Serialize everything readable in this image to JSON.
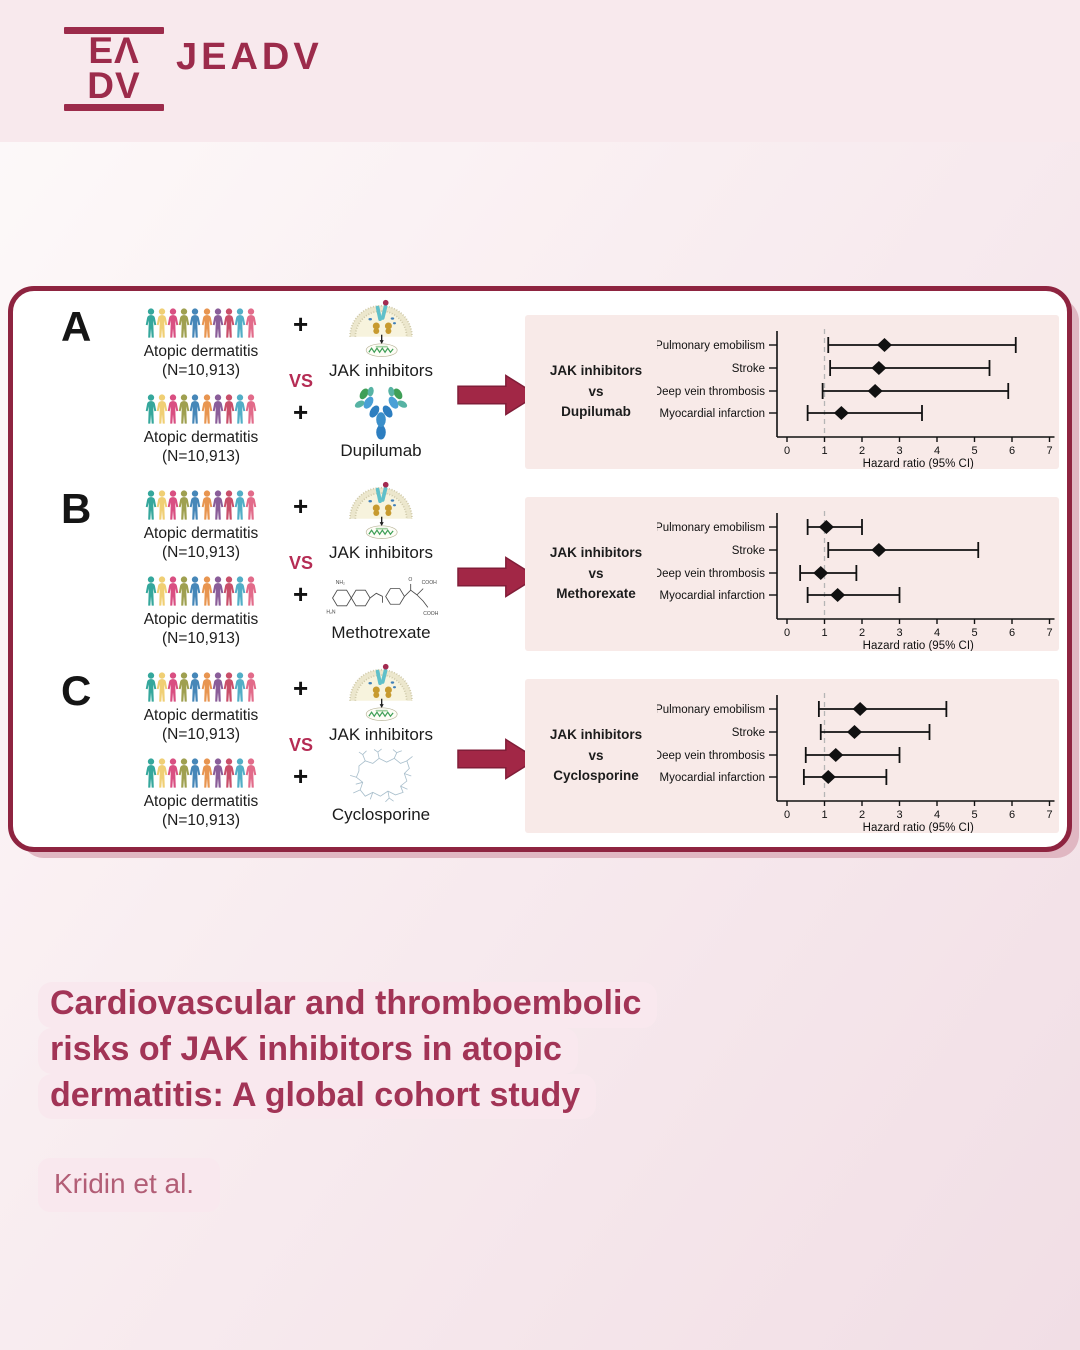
{
  "brand": {
    "logo_top": "EΛ",
    "logo_bottom": "DV",
    "journal": "JEADV"
  },
  "figure": {
    "panels": [
      {
        "letter": "A",
        "cohort_line1": "Atopic dermatitis",
        "cohort_line2": "(N=10,913)",
        "plus": "+",
        "vs": "VS",
        "drug_top_label": "JAK inhibitors",
        "drug_bottom_label": "Dupilumab",
        "comparison_lines": [
          "JAK inhibitors",
          "vs",
          "Dupilumab"
        ]
      },
      {
        "letter": "B",
        "cohort_line1": "Atopic dermatitis",
        "cohort_line2": "(N=10,913)",
        "plus": "+",
        "vs": "VS",
        "drug_top_label": "JAK inhibitors",
        "drug_bottom_label": "Methotrexate",
        "comparison_lines": [
          "JAK inhibitors",
          "vs",
          "Methorexate"
        ]
      },
      {
        "letter": "C",
        "cohort_line1": "Atopic dermatitis",
        "cohort_line2": "(N=10,913)",
        "plus": "+",
        "vs": "VS",
        "drug_top_label": "JAK inhibitors",
        "drug_bottom_label": "Cyclosporine",
        "comparison_lines": [
          "JAK inhibitors",
          "vs",
          "Cyclosporine"
        ]
      }
    ]
  },
  "chart_data": [
    {
      "type": "scatter",
      "variant": "forest-plot",
      "comparison": "JAK inhibitors vs Dupilumab",
      "categories": [
        "Pulmonary emobilism",
        "Stroke",
        "Deep vein thrombosis",
        "Myocardial infarction"
      ],
      "hr": [
        2.6,
        2.45,
        2.35,
        1.45
      ],
      "ci_low": [
        1.1,
        1.15,
        0.95,
        0.55
      ],
      "ci_high": [
        6.1,
        5.4,
        5.9,
        3.6
      ],
      "xlabel": "Hazard ratio (95% CI)",
      "xlim": [
        0,
        7
      ],
      "ref_line": 1
    },
    {
      "type": "scatter",
      "variant": "forest-plot",
      "comparison": "JAK inhibitors vs Methotrexate",
      "categories": [
        "Pulmonary emobilism",
        "Stroke",
        "Deep vein thrombosis",
        "Myocardial infarction"
      ],
      "hr": [
        1.05,
        2.45,
        0.9,
        1.35
      ],
      "ci_low": [
        0.55,
        1.1,
        0.35,
        0.55
      ],
      "ci_high": [
        2.0,
        5.1,
        1.85,
        3.0
      ],
      "xlabel": "Hazard ratio (95% CI)",
      "xlim": [
        0,
        7
      ],
      "ref_line": 1
    },
    {
      "type": "scatter",
      "variant": "forest-plot",
      "comparison": "JAK inhibitors vs Cyclosporine",
      "categories": [
        "Pulmonary emobilism",
        "Stroke",
        "Deep vein thrombosis",
        "Myocardial infarction"
      ],
      "hr": [
        1.95,
        1.8,
        1.3,
        1.1
      ],
      "ci_low": [
        0.85,
        0.9,
        0.5,
        0.45
      ],
      "ci_high": [
        4.25,
        3.8,
        3.0,
        2.65
      ],
      "xlabel": "Hazard ratio (95% CI)",
      "xlim": [
        0,
        7
      ],
      "ref_line": 1
    }
  ],
  "footer": {
    "title_lines": [
      "Cardiovascular and thromboembolic",
      "risks of JAK inhibitors in atopic",
      "dermatitis: A global cohort study"
    ],
    "authors": "Kridin et al."
  },
  "icons": {
    "jak_inhibitors": "cell-receptor-jak-icon",
    "dupilumab": "antibody-icon",
    "methotrexate": "chemical-structure-icon",
    "cyclosporine": "cyclic-peptide-structure-icon",
    "arrow": "right-arrow-icon",
    "crowd": "people-crowd-icon"
  },
  "colors": {
    "accent_maroon": "#9c2b4b",
    "box_border": "#8e2440",
    "vs_red": "#b52c54",
    "panel_pink": "#f8eae8",
    "band_pink": "#f8e9ed",
    "highlight_pink": "#f9e8ee",
    "title_text": "#a23456",
    "authors_text": "#b25e76"
  },
  "crowd_palette": [
    "#35a79c",
    "#f0cf74",
    "#d94f82",
    "#9fa050",
    "#4687b8",
    "#e89550",
    "#8a5d99",
    "#c94f6a",
    "#52aec6",
    "#e26b8a"
  ]
}
